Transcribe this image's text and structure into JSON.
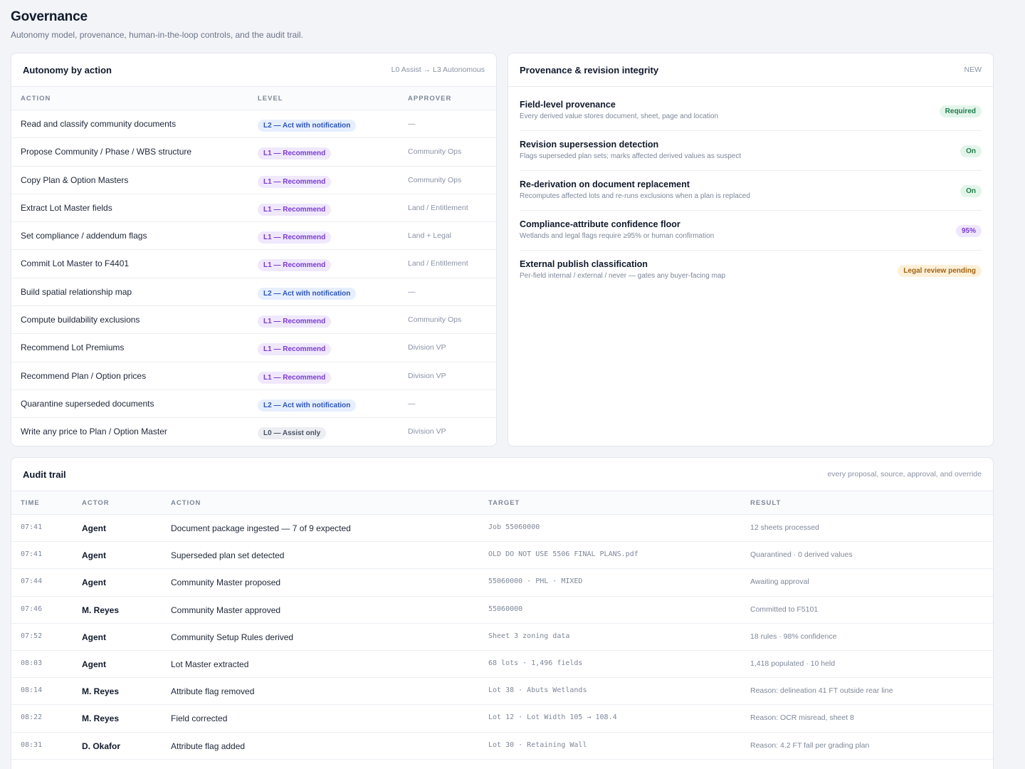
{
  "page": {
    "title": "Governance",
    "subtitle": "Autonomy model, provenance, human-in-the-loop controls, and the audit trail."
  },
  "autonomy": {
    "title": "Autonomy by action",
    "meta": "L0 Assist → L3 Autonomous",
    "columns": [
      "ACTION",
      "LEVEL",
      "APPROVER"
    ],
    "rows": [
      {
        "action": "Read and classify community documents",
        "level": "L2 — Act with notification",
        "level_code": "l2",
        "approver": "—"
      },
      {
        "action": "Propose Community / Phase / WBS structure",
        "level": "L1 — Recommend",
        "level_code": "l1",
        "approver": "Community Ops"
      },
      {
        "action": "Copy Plan & Option Masters",
        "level": "L1 — Recommend",
        "level_code": "l1",
        "approver": "Community Ops"
      },
      {
        "action": "Extract Lot Master fields",
        "level": "L1 — Recommend",
        "level_code": "l1",
        "approver": "Land / Entitlement"
      },
      {
        "action": "Set compliance / addendum flags",
        "level": "L1 — Recommend",
        "level_code": "l1",
        "approver": "Land + Legal"
      },
      {
        "action": "Commit Lot Master to F4401",
        "level": "L1 — Recommend",
        "level_code": "l1",
        "approver": "Land / Entitlement"
      },
      {
        "action": "Build spatial relationship map",
        "level": "L2 — Act with notification",
        "level_code": "l2",
        "approver": "—"
      },
      {
        "action": "Compute buildability exclusions",
        "level": "L1 — Recommend",
        "level_code": "l1",
        "approver": "Community Ops"
      },
      {
        "action": "Recommend Lot Premiums",
        "level": "L1 — Recommend",
        "level_code": "l1",
        "approver": "Division VP"
      },
      {
        "action": "Recommend Plan / Option prices",
        "level": "L1 — Recommend",
        "level_code": "l1",
        "approver": "Division VP"
      },
      {
        "action": "Quarantine superseded documents",
        "level": "L2 — Act with notification",
        "level_code": "l2",
        "approver": "—"
      },
      {
        "action": "Write any price to Plan / Option Master",
        "level": "L0 — Assist only",
        "level_code": "l0",
        "approver": "Division VP"
      }
    ]
  },
  "provenance": {
    "title": "Provenance & revision integrity",
    "meta": "NEW",
    "items": [
      {
        "title": "Field-level provenance",
        "desc": "Every derived value stores document, sheet, page and location",
        "badge": "Required",
        "badge_color": "green"
      },
      {
        "title": "Revision supersession detection",
        "desc": "Flags superseded plan sets; marks affected derived values as suspect",
        "badge": "On",
        "badge_color": "green"
      },
      {
        "title": "Re-derivation on document replacement",
        "desc": "Recomputes affected lots and re-runs exclusions when a plan is replaced",
        "badge": "On",
        "badge_color": "green"
      },
      {
        "title": "Compliance-attribute confidence floor",
        "desc": "Wetlands and legal flags require ≥95% or human confirmation",
        "badge": "95%",
        "badge_color": "purple"
      },
      {
        "title": "External publish classification",
        "desc": "Per-field internal / external / never — gates any buyer-facing map",
        "badge": "Legal review pending",
        "badge_color": "amber"
      }
    ]
  },
  "audit": {
    "title": "Audit trail",
    "meta": "every proposal, source, approval, and override",
    "columns": [
      "TIME",
      "ACTOR",
      "ACTION",
      "TARGET",
      "RESULT"
    ],
    "rows": [
      {
        "time": "07:41",
        "actor": "Agent",
        "action": "Document package ingested — 7 of 9 expected",
        "target": "Job 55060000",
        "result": "12 sheets processed"
      },
      {
        "time": "07:41",
        "actor": "Agent",
        "action": "Superseded plan set detected",
        "target": "OLD DO NOT USE 5506 FINAL PLANS.pdf",
        "result": "Quarantined · 0 derived values"
      },
      {
        "time": "07:44",
        "actor": "Agent",
        "action": "Community Master proposed",
        "target": "55060000 · PHL · MIXED",
        "result": "Awaiting approval"
      },
      {
        "time": "07:46",
        "actor": "M. Reyes",
        "action": "Community Master approved",
        "target": "55060000",
        "result": "Committed to F5101"
      },
      {
        "time": "07:52",
        "actor": "Agent",
        "action": "Community Setup Rules derived",
        "target": "Sheet 3 zoning data",
        "result": "18 rules · 98% confidence"
      },
      {
        "time": "08:03",
        "actor": "Agent",
        "action": "Lot Master extracted",
        "target": "68 lots · 1,496 fields",
        "result": "1,418 populated · 10 held"
      },
      {
        "time": "08:14",
        "actor": "M. Reyes",
        "action": "Attribute flag removed",
        "target": "Lot 38 · Abuts Wetlands",
        "result": "Reason: delineation 41 FT outside rear line"
      },
      {
        "time": "08:22",
        "actor": "M. Reyes",
        "action": "Field corrected",
        "target": "Lot 12 · Lot Width 105 → 108.4",
        "result": "Reason: OCR misread, sheet 8"
      },
      {
        "time": "08:31",
        "actor": "D. Okafor",
        "action": "Attribute flag added",
        "target": "Lot 30 · Retaining Wall",
        "result": "Reason: 4.2 FT fall per grading plan"
      }
    ]
  }
}
